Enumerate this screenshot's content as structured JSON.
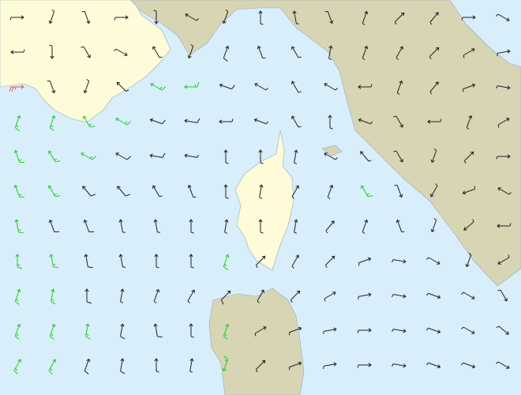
{
  "wind": {
    "direction": [
      [
        90,
        200,
        160,
        90,
        180,
        300,
        200,
        0,
        350,
        160,
        20,
        45,
        40,
        90,
        120
      ],
      [
        270,
        180,
        150,
        120,
        330,
        200,
        20,
        340,
        330,
        10,
        20,
        30,
        45,
        60,
        80
      ],
      [
        90,
        160,
        200,
        315,
        300,
        270,
        290,
        300,
        330,
        300,
        270,
        20,
        40,
        70,
        100
      ],
      [
        20,
        20,
        330,
        300,
        290,
        280,
        270,
        290,
        330,
        0,
        290,
        150,
        270,
        20,
        60
      ],
      [
        340,
        330,
        300,
        300,
        280,
        280,
        0,
        0,
        10,
        300,
        320,
        150,
        200,
        45,
        90
      ],
      [
        340,
        330,
        320,
        320,
        330,
        340,
        0,
        10,
        30,
        20,
        330,
        160,
        210,
        250,
        300
      ],
      [
        350,
        340,
        340,
        350,
        350,
        0,
        10,
        0,
        10,
        40,
        20,
        340,
        200,
        230,
        270
      ],
      [
        0,
        350,
        350,
        350,
        0,
        0,
        20,
        45,
        30,
        45,
        70,
        100,
        120,
        200,
        240
      ],
      [
        20,
        10,
        0,
        10,
        20,
        30,
        45,
        30,
        45,
        60,
        80,
        100,
        110,
        120,
        150
      ],
      [
        20,
        20,
        10,
        10,
        350,
        0,
        20,
        60,
        70,
        80,
        90,
        100,
        110,
        120,
        130
      ],
      [
        30,
        30,
        20,
        10,
        0,
        10,
        200,
        45,
        70,
        80,
        90,
        100,
        110,
        110,
        120
      ]
    ],
    "speed": [
      [
        5,
        5,
        5,
        5,
        5,
        5,
        5,
        5,
        5,
        5,
        5,
        5,
        5,
        5,
        5
      ],
      [
        5,
        5,
        5,
        5,
        5,
        5,
        10,
        5,
        5,
        5,
        5,
        5,
        5,
        5,
        5
      ],
      [
        25,
        5,
        5,
        5,
        15,
        15,
        10,
        5,
        5,
        5,
        5,
        5,
        5,
        5,
        5
      ],
      [
        15,
        15,
        15,
        15,
        10,
        10,
        5,
        5,
        5,
        5,
        5,
        5,
        5,
        5,
        5
      ],
      [
        15,
        15,
        15,
        10,
        10,
        5,
        5,
        5,
        5,
        5,
        5,
        5,
        5,
        5,
        5
      ],
      [
        15,
        15,
        10,
        10,
        5,
        5,
        5,
        5,
        5,
        5,
        15,
        5,
        5,
        5,
        5
      ],
      [
        15,
        10,
        10,
        5,
        5,
        5,
        5,
        5,
        5,
        5,
        5,
        5,
        5,
        5,
        5
      ],
      [
        15,
        15,
        10,
        5,
        5,
        5,
        15,
        5,
        5,
        5,
        5,
        5,
        5,
        5,
        5
      ],
      [
        15,
        15,
        10,
        5,
        5,
        5,
        10,
        5,
        5,
        5,
        5,
        5,
        5,
        5,
        5
      ],
      [
        15,
        15,
        15,
        10,
        10,
        5,
        15,
        5,
        5,
        5,
        5,
        5,
        5,
        5,
        5
      ],
      [
        15,
        15,
        10,
        10,
        5,
        5,
        15,
        5,
        5,
        5,
        5,
        5,
        5,
        5,
        5
      ]
    ]
  }
}
